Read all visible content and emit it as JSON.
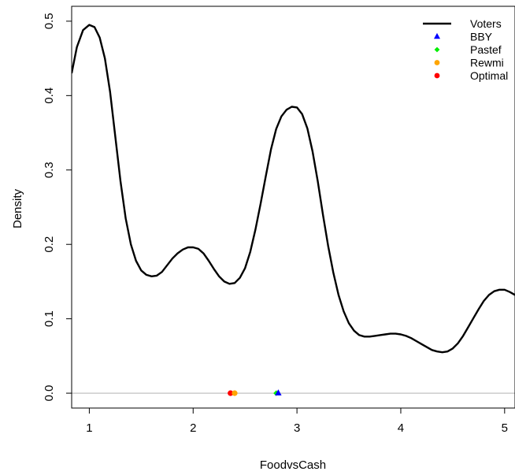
{
  "chart_data": {
    "type": "line",
    "title": "",
    "xlabel": "FoodvsCash",
    "ylabel": "Density",
    "xlim": [
      0.83,
      5.1
    ],
    "ylim": [
      -0.02,
      0.52
    ],
    "x_ticks": [
      1,
      2,
      3,
      4,
      5
    ],
    "x_tick_labels": [
      "1",
      "2",
      "3",
      "4",
      "5"
    ],
    "y_ticks": [
      0.0,
      0.1,
      0.2,
      0.3,
      0.4,
      0.5
    ],
    "y_tick_labels": [
      "0.0",
      "0.1",
      "0.2",
      "0.3",
      "0.4",
      "0.5"
    ],
    "baseline_y": 0.0,
    "grid": false,
    "legend_position": "top-right",
    "series": [
      {
        "name": "Voters",
        "kind": "density-line",
        "color": "#000000",
        "points": [
          [
            0.83,
            0.43
          ],
          [
            0.88,
            0.465
          ],
          [
            0.94,
            0.488
          ],
          [
            1.0,
            0.495
          ],
          [
            1.05,
            0.492
          ],
          [
            1.1,
            0.478
          ],
          [
            1.15,
            0.45
          ],
          [
            1.2,
            0.405
          ],
          [
            1.25,
            0.345
          ],
          [
            1.3,
            0.285
          ],
          [
            1.35,
            0.235
          ],
          [
            1.4,
            0.2
          ],
          [
            1.45,
            0.178
          ],
          [
            1.5,
            0.165
          ],
          [
            1.55,
            0.159
          ],
          [
            1.6,
            0.157
          ],
          [
            1.65,
            0.158
          ],
          [
            1.7,
            0.163
          ],
          [
            1.75,
            0.172
          ],
          [
            1.8,
            0.181
          ],
          [
            1.85,
            0.188
          ],
          [
            1.9,
            0.193
          ],
          [
            1.95,
            0.196
          ],
          [
            2.0,
            0.196
          ],
          [
            2.05,
            0.194
          ],
          [
            2.1,
            0.188
          ],
          [
            2.15,
            0.178
          ],
          [
            2.2,
            0.167
          ],
          [
            2.25,
            0.157
          ],
          [
            2.3,
            0.15
          ],
          [
            2.35,
            0.147
          ],
          [
            2.4,
            0.148
          ],
          [
            2.45,
            0.155
          ],
          [
            2.5,
            0.168
          ],
          [
            2.55,
            0.19
          ],
          [
            2.6,
            0.22
          ],
          [
            2.65,
            0.255
          ],
          [
            2.7,
            0.292
          ],
          [
            2.75,
            0.328
          ],
          [
            2.8,
            0.355
          ],
          [
            2.85,
            0.372
          ],
          [
            2.9,
            0.381
          ],
          [
            2.95,
            0.385
          ],
          [
            3.0,
            0.384
          ],
          [
            3.05,
            0.375
          ],
          [
            3.1,
            0.356
          ],
          [
            3.15,
            0.325
          ],
          [
            3.2,
            0.285
          ],
          [
            3.25,
            0.24
          ],
          [
            3.3,
            0.198
          ],
          [
            3.35,
            0.162
          ],
          [
            3.4,
            0.132
          ],
          [
            3.45,
            0.11
          ],
          [
            3.5,
            0.094
          ],
          [
            3.55,
            0.084
          ],
          [
            3.6,
            0.078
          ],
          [
            3.65,
            0.076
          ],
          [
            3.7,
            0.076
          ],
          [
            3.75,
            0.077
          ],
          [
            3.8,
            0.078
          ],
          [
            3.85,
            0.079
          ],
          [
            3.9,
            0.08
          ],
          [
            3.95,
            0.08
          ],
          [
            4.0,
            0.079
          ],
          [
            4.05,
            0.077
          ],
          [
            4.1,
            0.074
          ],
          [
            4.15,
            0.07
          ],
          [
            4.2,
            0.066
          ],
          [
            4.25,
            0.062
          ],
          [
            4.3,
            0.058
          ],
          [
            4.35,
            0.056
          ],
          [
            4.4,
            0.055
          ],
          [
            4.45,
            0.056
          ],
          [
            4.5,
            0.06
          ],
          [
            4.55,
            0.067
          ],
          [
            4.6,
            0.077
          ],
          [
            4.65,
            0.089
          ],
          [
            4.7,
            0.101
          ],
          [
            4.75,
            0.113
          ],
          [
            4.8,
            0.124
          ],
          [
            4.85,
            0.132
          ],
          [
            4.9,
            0.137
          ],
          [
            4.95,
            0.139
          ],
          [
            5.0,
            0.139
          ],
          [
            5.05,
            0.136
          ],
          [
            5.1,
            0.132
          ]
        ]
      },
      {
        "name": "BBY",
        "kind": "point",
        "marker": "triangle",
        "color": "#0000ff",
        "x": 2.82,
        "y": 0.0
      },
      {
        "name": "Pastef",
        "kind": "point",
        "marker": "diamond",
        "color": "#00ee00",
        "x": 2.8,
        "y": 0.0
      },
      {
        "name": "Rewmi",
        "kind": "point",
        "marker": "circle",
        "color": "#ffa500",
        "x": 2.4,
        "y": 0.0
      },
      {
        "name": "Optimal",
        "kind": "point",
        "marker": "circle",
        "color": "#ff0000",
        "x": 2.36,
        "y": 0.0
      }
    ],
    "legend": [
      {
        "label": "Voters",
        "symbol": "line",
        "color": "#000000"
      },
      {
        "label": "BBY",
        "symbol": "triangle",
        "color": "#0000ff"
      },
      {
        "label": "Pastef",
        "symbol": "diamond",
        "color": "#00ee00"
      },
      {
        "label": "Rewmi",
        "symbol": "circle",
        "color": "#ffa500"
      },
      {
        "label": "Optimal",
        "symbol": "circle",
        "color": "#ff0000"
      }
    ]
  }
}
